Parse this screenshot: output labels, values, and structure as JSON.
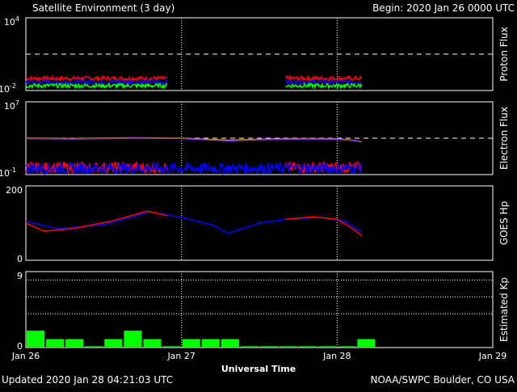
{
  "header": {
    "title": "Satellite Environment (3 day)",
    "begin": "Begin:  2020 Jan 26 0000 UTC"
  },
  "footer": {
    "updated": "Updated 2020 Jan 28 04:21:03 UTC",
    "credit": "NOAA/SWPC Boulder, CO USA"
  },
  "x_axis": {
    "label": "Universal Time",
    "ticks": [
      "Jan 26",
      "Jan 27",
      "Jan 28",
      "Jan 29"
    ]
  },
  "colors": {
    "background": "#000000",
    "frame": "#ffffff",
    "red": "#ff0000",
    "green": "#00ff00",
    "blue": "#0000ff",
    "orange": "#ffa500",
    "purple": "#7a2bd6"
  },
  "chart_data": [
    {
      "type": "line",
      "ylabel": "Proton Flux",
      "y_scale": "log",
      "ylim": [
        0.01,
        10000
      ],
      "y_ticks": [
        {
          "base": "10",
          "exp": "4"
        },
        {
          "base": "10",
          "exp": "-2"
        }
      ],
      "threshold": 10,
      "x_days": [
        0,
        3
      ],
      "series": [
        {
          "color": "#ff0000",
          "segments": [
            [
              0,
              0.91
            ],
            [
              1.67,
              2.16
            ]
          ],
          "level": 0.1
        },
        {
          "color": "#0000ff",
          "segments": [
            [
              0,
              0.91
            ],
            [
              1.67,
              2.16
            ]
          ],
          "level": 0.05
        },
        {
          "color": "#00ff00",
          "segments": [
            [
              0,
              0.91
            ],
            [
              1.67,
              2.16
            ]
          ],
          "level": 0.025
        }
      ]
    },
    {
      "type": "line",
      "ylabel": "Electron Flux",
      "y_scale": "log",
      "ylim": [
        0.1,
        10000000
      ],
      "y_ticks": [
        {
          "base": "10",
          "exp": "7"
        },
        {
          "base": "10",
          "exp": "-1"
        }
      ],
      "threshold": 1000,
      "series": [
        {
          "color": "#ffa500",
          "x": [
            0,
            0.3,
            0.7,
            1.0,
            1.3,
            1.55,
            1.8,
            2.0,
            2.1,
            2.16
          ],
          "y": [
            1000,
            900,
            1100,
            1000,
            600,
            800,
            900,
            850,
            600,
            400
          ]
        },
        {
          "color": "#7a2bd6",
          "x": [
            0,
            0.3,
            0.7,
            1.0,
            1.3,
            1.55,
            1.8,
            2.0,
            2.1,
            2.16
          ],
          "y": [
            900,
            800,
            1000,
            900,
            500,
            700,
            800,
            750,
            550,
            380
          ]
        },
        {
          "color": "#ff0000",
          "segments": [
            [
              0,
              0.91
            ],
            [
              1.67,
              2.16
            ]
          ],
          "level": 0.6
        },
        {
          "color": "#0000ff",
          "segments": [
            [
              0,
              2.16
            ]
          ],
          "level": 0.5
        }
      ]
    },
    {
      "type": "line",
      "ylabel": "GOES Hp",
      "ylim": [
        0,
        200
      ],
      "y_ticks": [
        200,
        0
      ],
      "series": [
        {
          "color": "#0000ff",
          "x": [
            0,
            0.2,
            0.5,
            0.8,
            1.0,
            1.2,
            1.3,
            1.5,
            1.7,
            1.9,
            2.05,
            2.16
          ],
          "y": [
            105,
            85,
            95,
            130,
            115,
            95,
            72,
            100,
            112,
            115,
            105,
            75
          ]
        },
        {
          "color": "#ff0000",
          "x": [
            0,
            0.12,
            0.3,
            0.55,
            0.78,
            0.91
          ],
          "y": [
            100,
            78,
            85,
            105,
            132,
            120
          ]
        },
        {
          "color": "#ff0000",
          "x": [
            1.67,
            1.85,
            2.0,
            2.1,
            2.16
          ],
          "y": [
            110,
            117,
            110,
            85,
            65
          ]
        }
      ]
    },
    {
      "type": "bar",
      "ylabel": "Estimated Kp",
      "ylim": [
        0,
        9
      ],
      "y_ticks": [
        9,
        0
      ],
      "dotted_levels": [
        9,
        8,
        6,
        4
      ],
      "bar_color": "#00ff00",
      "bar_hours": 3,
      "values": [
        2,
        1,
        1,
        0,
        1,
        2,
        1,
        0,
        1,
        1,
        1,
        0,
        0,
        0,
        0,
        0,
        0,
        1
      ]
    }
  ]
}
